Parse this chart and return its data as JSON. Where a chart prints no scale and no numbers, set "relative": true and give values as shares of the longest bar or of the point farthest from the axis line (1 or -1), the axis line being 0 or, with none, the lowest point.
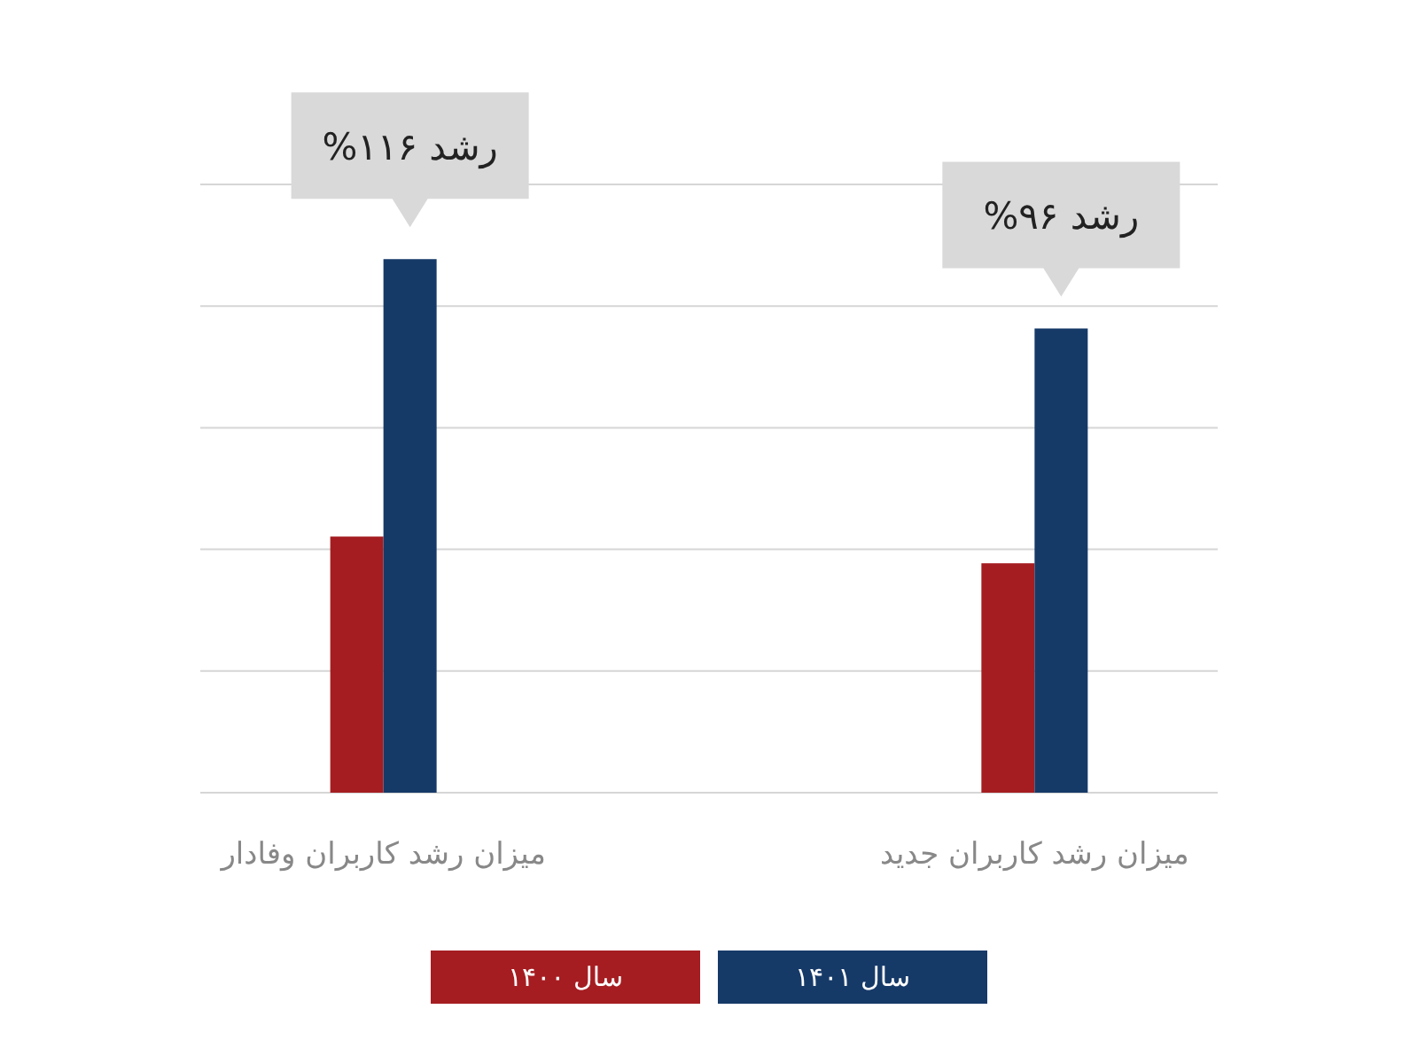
{
  "chart_data": {
    "type": "bar",
    "relative": true,
    "grid": "y",
    "legend": "bottom",
    "categories": [
      "میزان رشد کاربران وفادار",
      "میزان رشد کاربران جدید"
    ],
    "series": [
      {
        "name": "سال ۱۴۰۰",
        "color": "#a51d21",
        "values": [
          0.48,
          0.43
        ]
      },
      {
        "name": "سال ۱۴۰۱",
        "color": "#163a68",
        "values": [
          1,
          0.87
        ]
      }
    ],
    "annotations": [
      {
        "text": "رشد ۱۱۶%",
        "x": "میزان رشد کاربران وفادار",
        "y": 1
      },
      {
        "text": "رشد ۹۶%",
        "x": "میزان رشد کاربران جدید",
        "y": 0.87
      }
    ]
  }
}
